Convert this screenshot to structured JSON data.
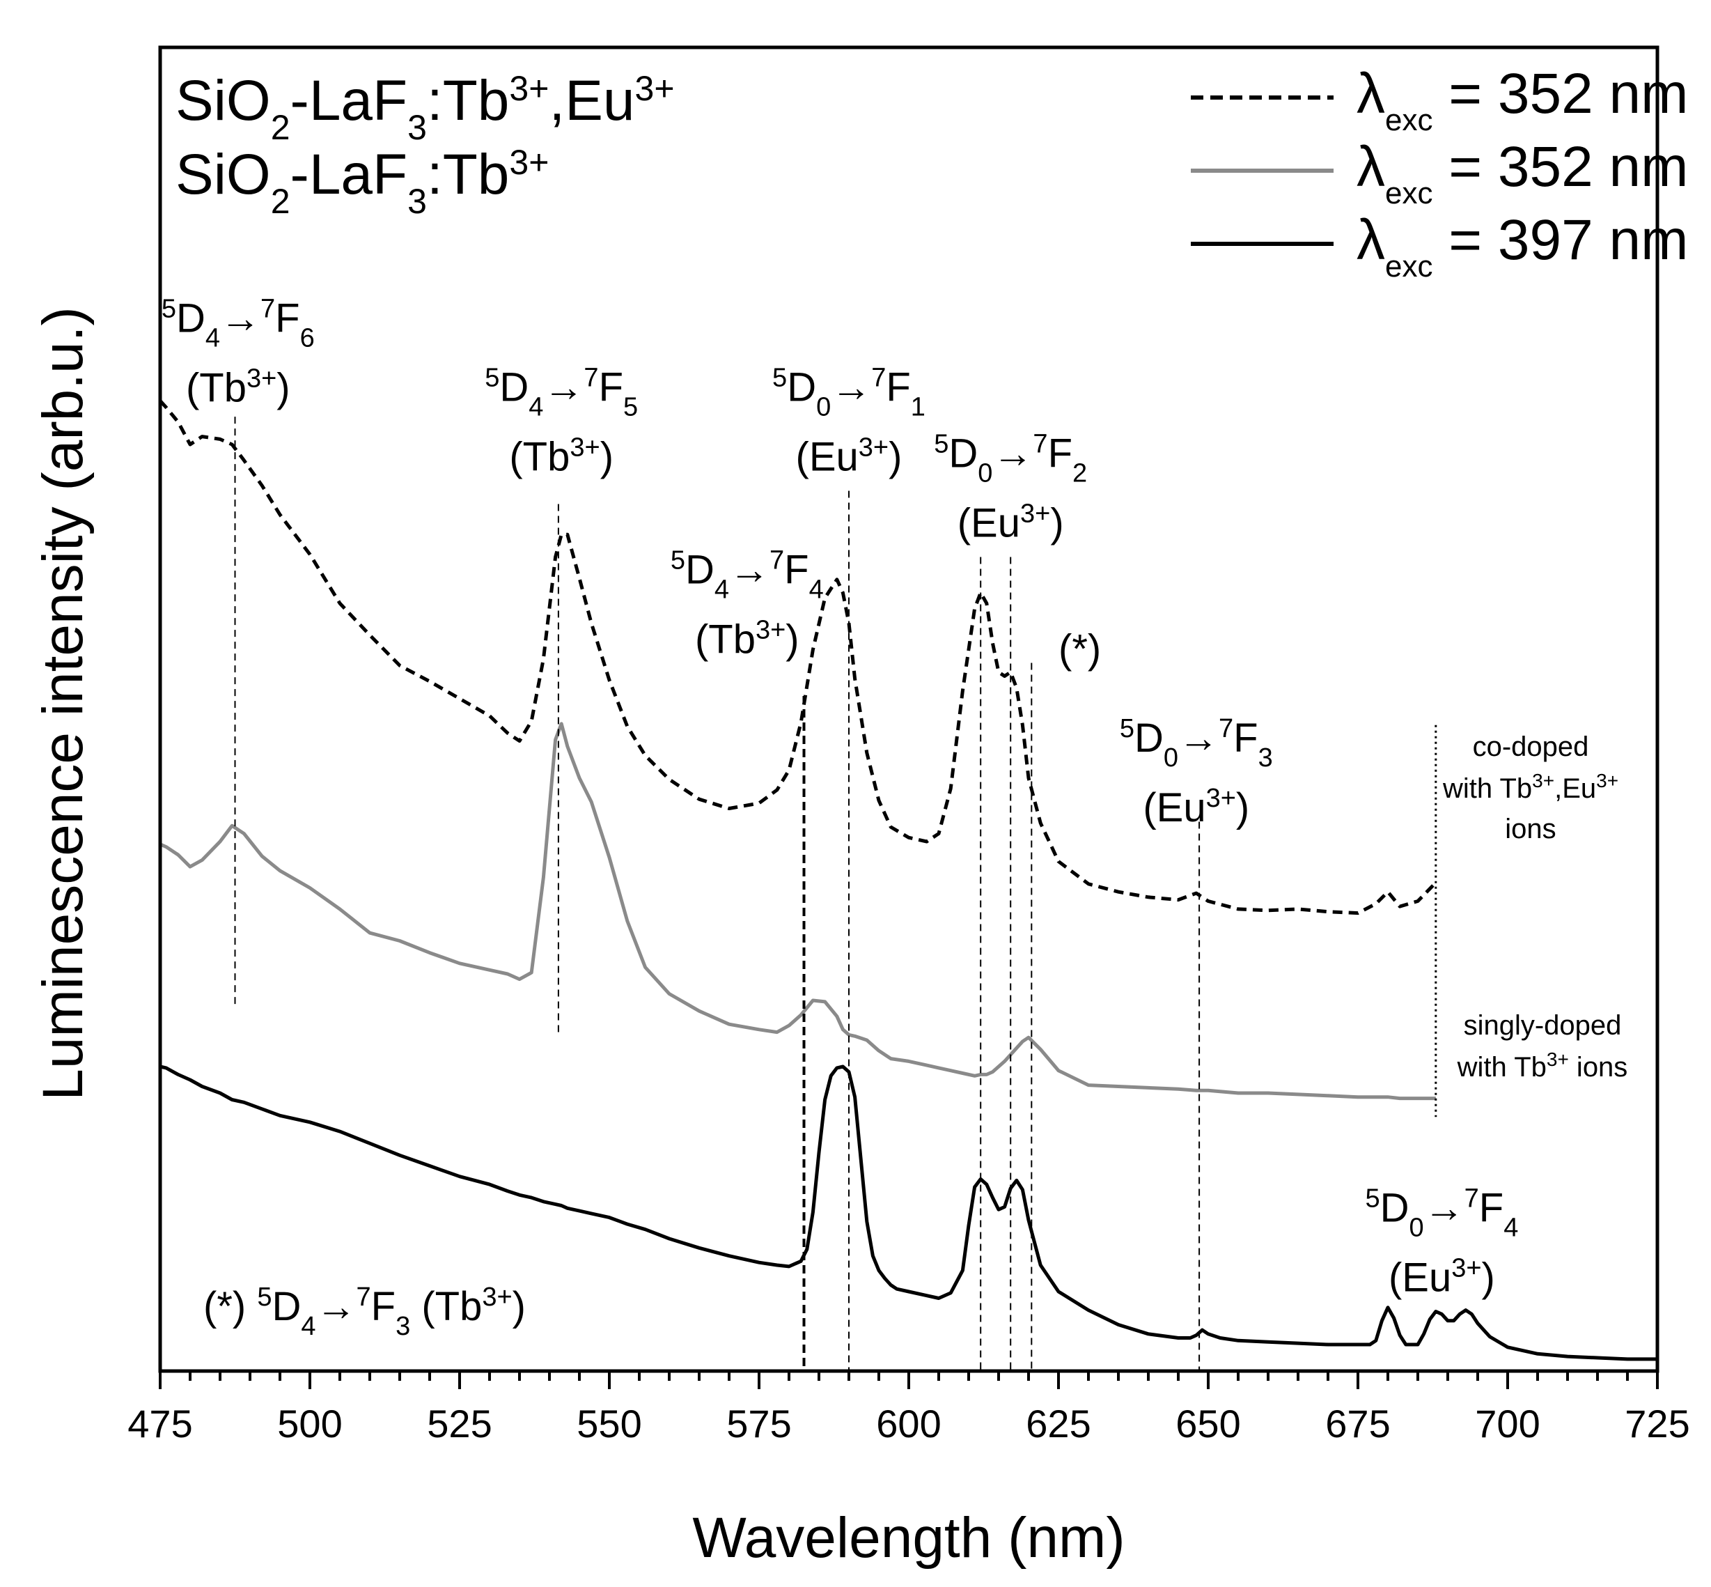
{
  "chart_data": {
    "type": "line",
    "xlabel": "Wavelength (nm)",
    "ylabel": "Luminescence intensity (arb.u.)",
    "xlim": [
      475,
      725
    ],
    "ylim": [
      0,
      1
    ],
    "x_ticks": [
      "475",
      "500",
      "525",
      "550",
      "575",
      "600",
      "625",
      "650",
      "675",
      "700",
      "725"
    ],
    "y_ticks_shown": false,
    "sample_labels": [
      {
        "parts": [
          [
            "SiO",
            "n"
          ],
          [
            "2",
            "sub"
          ],
          [
            "-LaF",
            "n"
          ],
          [
            "3",
            "sub"
          ],
          [
            ":Tb",
            "n"
          ],
          [
            "3+",
            "sup"
          ],
          [
            ",Eu",
            "n"
          ],
          [
            "3+",
            "sup"
          ]
        ]
      },
      {
        "parts": [
          [
            "SiO",
            "n"
          ],
          [
            "2",
            "sub"
          ],
          [
            "-LaF",
            "n"
          ],
          [
            "3",
            "sub"
          ],
          [
            ":Tb",
            "n"
          ],
          [
            "3+",
            "sup"
          ]
        ]
      }
    ],
    "legend": [
      {
        "style": "dashed",
        "color": "#000000",
        "prefix": "λ",
        "sub": "exc",
        "text": " = 352 nm"
      },
      {
        "style": "solid",
        "color": "#8a8a8a",
        "prefix": "λ",
        "sub": "exc",
        "text": " = 352 nm"
      },
      {
        "style": "solid",
        "color": "#000000",
        "prefix": "λ",
        "sub": "exc",
        "text": " = 397 nm"
      }
    ],
    "series": [
      {
        "name": "co-doped with Tb3+,Eu3+ ions, λexc = 352 nm",
        "style": "dashed",
        "color": "#000000",
        "x": [
          475,
          476,
          478,
          480,
          482,
          485,
          487,
          489,
          492,
          495,
          500,
          505,
          510,
          515,
          520,
          525,
          530,
          533,
          535,
          537,
          539,
          541,
          542,
          543,
          545,
          547,
          550,
          553,
          556,
          560,
          565,
          570,
          575,
          578,
          580,
          582,
          584,
          586,
          588,
          589,
          590,
          591,
          593,
          595,
          597,
          600,
          603,
          605,
          607,
          609,
          611,
          612,
          613,
          614,
          615,
          616,
          617,
          618,
          619,
          620,
          622,
          625,
          630,
          635,
          640,
          645,
          648,
          650,
          655,
          660,
          665,
          670,
          675,
          678,
          680,
          682,
          685,
          688
        ],
        "y": [
          0.733,
          0.728,
          0.717,
          0.7,
          0.706,
          0.704,
          0.7,
          0.688,
          0.669,
          0.647,
          0.617,
          0.58,
          0.556,
          0.533,
          0.521,
          0.508,
          0.495,
          0.482,
          0.476,
          0.491,
          0.538,
          0.615,
          0.632,
          0.632,
          0.599,
          0.565,
          0.522,
          0.487,
          0.465,
          0.447,
          0.432,
          0.425,
          0.429,
          0.439,
          0.454,
          0.49,
          0.545,
          0.584,
          0.598,
          0.588,
          0.565,
          0.523,
          0.467,
          0.431,
          0.411,
          0.403,
          0.4,
          0.406,
          0.44,
          0.514,
          0.576,
          0.588,
          0.58,
          0.55,
          0.528,
          0.525,
          0.528,
          0.516,
          0.488,
          0.448,
          0.414,
          0.385,
          0.368,
          0.362,
          0.358,
          0.356,
          0.361,
          0.355,
          0.349,
          0.348,
          0.349,
          0.347,
          0.346,
          0.353,
          0.362,
          0.351,
          0.355,
          0.369
        ]
      },
      {
        "name": "singly-doped with Tb3+ ions, λexc = 352 nm",
        "style": "solid",
        "color": "#8a8a8a",
        "x": [
          475,
          476,
          478,
          480,
          482,
          485,
          487,
          489,
          492,
          495,
          500,
          505,
          510,
          515,
          520,
          525,
          530,
          533,
          535,
          537,
          539,
          541,
          542,
          543,
          545,
          547,
          550,
          553,
          556,
          560,
          565,
          570,
          575,
          578,
          580,
          582,
          584,
          586,
          588,
          589,
          590,
          591,
          593,
          595,
          597,
          600,
          603,
          605,
          607,
          609,
          611,
          612,
          613,
          614,
          615,
          616,
          617,
          618,
          619,
          620,
          622,
          625,
          630,
          635,
          640,
          645,
          648,
          650,
          655,
          660,
          665,
          670,
          675,
          678,
          680,
          682,
          685,
          688
        ],
        "y": [
          0.398,
          0.396,
          0.39,
          0.381,
          0.386,
          0.4,
          0.412,
          0.406,
          0.389,
          0.378,
          0.365,
          0.349,
          0.331,
          0.325,
          0.316,
          0.308,
          0.303,
          0.3,
          0.296,
          0.301,
          0.373,
          0.477,
          0.489,
          0.472,
          0.448,
          0.43,
          0.388,
          0.34,
          0.305,
          0.285,
          0.272,
          0.262,
          0.258,
          0.256,
          0.261,
          0.269,
          0.28,
          0.279,
          0.268,
          0.258,
          0.254,
          0.253,
          0.25,
          0.242,
          0.236,
          0.234,
          0.231,
          0.229,
          0.227,
          0.225,
          0.223,
          0.224,
          0.224,
          0.226,
          0.23,
          0.234,
          0.239,
          0.244,
          0.249,
          0.252,
          0.243,
          0.227,
          0.216,
          0.215,
          0.214,
          0.213,
          0.212,
          0.212,
          0.21,
          0.21,
          0.209,
          0.208,
          0.207,
          0.207,
          0.207,
          0.206,
          0.206,
          0.206
        ]
      },
      {
        "name": "co-doped with Tb3+,Eu3+ ions, λexc = 397 nm",
        "style": "solid",
        "color": "#000000",
        "x": [
          475,
          476,
          478,
          480,
          482,
          485,
          487,
          489,
          492,
          495,
          500,
          505,
          510,
          515,
          520,
          525,
          530,
          533,
          535,
          537,
          539,
          541,
          542,
          543,
          545,
          547,
          550,
          553,
          556,
          560,
          565,
          570,
          575,
          578,
          580,
          582,
          583,
          584,
          585,
          586,
          587,
          588,
          589,
          590,
          591,
          592,
          593,
          594,
          595,
          596,
          597,
          598,
          600,
          603,
          605,
          607,
          609,
          610,
          611,
          612,
          613,
          614,
          615,
          616,
          617,
          618,
          619,
          620,
          622,
          625,
          630,
          635,
          640,
          645,
          647,
          648,
          649,
          650,
          652,
          655,
          660,
          665,
          670,
          675,
          677,
          678,
          679,
          680,
          681,
          682,
          683,
          685,
          686,
          687,
          688,
          689,
          690,
          691,
          692,
          693,
          694,
          695,
          697,
          700,
          705,
          710,
          715,
          720,
          725
        ],
        "y": [
          0.23,
          0.229,
          0.224,
          0.22,
          0.215,
          0.21,
          0.205,
          0.203,
          0.198,
          0.193,
          0.188,
          0.181,
          0.172,
          0.163,
          0.155,
          0.147,
          0.141,
          0.136,
          0.133,
          0.131,
          0.128,
          0.126,
          0.125,
          0.123,
          0.121,
          0.119,
          0.116,
          0.111,
          0.107,
          0.1,
          0.093,
          0.087,
          0.082,
          0.08,
          0.079,
          0.083,
          0.092,
          0.12,
          0.165,
          0.205,
          0.223,
          0.229,
          0.23,
          0.226,
          0.207,
          0.16,
          0.113,
          0.087,
          0.076,
          0.07,
          0.065,
          0.062,
          0.06,
          0.057,
          0.055,
          0.059,
          0.076,
          0.11,
          0.139,
          0.145,
          0.141,
          0.131,
          0.122,
          0.124,
          0.138,
          0.144,
          0.137,
          0.114,
          0.08,
          0.06,
          0.046,
          0.035,
          0.028,
          0.025,
          0.025,
          0.027,
          0.031,
          0.028,
          0.025,
          0.023,
          0.022,
          0.021,
          0.02,
          0.02,
          0.02,
          0.023,
          0.038,
          0.048,
          0.04,
          0.027,
          0.02,
          0.02,
          0.028,
          0.039,
          0.045,
          0.043,
          0.038,
          0.038,
          0.043,
          0.046,
          0.043,
          0.036,
          0.026,
          0.018,
          0.013,
          0.011,
          0.01,
          0.009,
          0.009
        ]
      }
    ],
    "transition_lines": [
      {
        "x": 487.5,
        "y_top": 0.721,
        "y_bottom": 0.275,
        "style": "dashed"
      },
      {
        "x": 541.5,
        "y_top": 0.655,
        "y_bottom": 0.253,
        "style": "dashed"
      },
      {
        "x": 582.5,
        "y_top": 0.51,
        "y_bottom": 0.0,
        "style": "dashed-heavy"
      },
      {
        "x": 590,
        "y_top": 0.665,
        "y_bottom": 0.0,
        "style": "dashed"
      },
      {
        "x": 612,
        "y_top": 0.615,
        "y_bottom": 0.0,
        "style": "dashed"
      },
      {
        "x": 617,
        "y_top": 0.615,
        "y_bottom": 0.0,
        "style": "dashed"
      },
      {
        "x": 620.5,
        "y_top": 0.535,
        "y_bottom": 0.0,
        "style": "dashed"
      },
      {
        "x": 648.5,
        "y_top": 0.415,
        "y_bottom": 0.0,
        "style": "dashed"
      },
      {
        "x": 688,
        "y_top": 0.488,
        "y_bottom": 0.192,
        "style": "dotted"
      }
    ],
    "annotations": [
      {
        "x": 488,
        "y": 0.785,
        "upper": "5",
        "a": "D",
        "a_sub": "4",
        "arrow": "→",
        "b_sup": "7",
        "b": "F",
        "b_sub": "6",
        "ion_open": "(Tb",
        "ion_sup": "3+",
        "ion_close": ")"
      },
      {
        "x": 542,
        "y": 0.733,
        "upper": "5",
        "a": "D",
        "a_sub": "4",
        "arrow": "→",
        "b_sup": "7",
        "b": "F",
        "b_sub": "5",
        "ion_open": "(Tb",
        "ion_sup": "3+",
        "ion_close": ")"
      },
      {
        "x": 590,
        "y": 0.733,
        "upper": "5",
        "a": "D",
        "a_sub": "0",
        "arrow": "→",
        "b_sup": "7",
        "b": "F",
        "b_sub": "1",
        "ion_open": "(Eu",
        "ion_sup": "3+",
        "ion_close": ")"
      },
      {
        "x": 617,
        "y": 0.683,
        "upper": "5",
        "a": "D",
        "a_sub": "0",
        "arrow": "→",
        "b_sup": "7",
        "b": "F",
        "b_sub": "2",
        "ion_open": "(Eu",
        "ion_sup": "3+",
        "ion_close": ")"
      },
      {
        "x": 573,
        "y": 0.595,
        "upper": "5",
        "a": "D",
        "a_sub": "4",
        "arrow": "→",
        "b_sup": "7",
        "b": "F",
        "b_sub": "4",
        "ion_open": "(Tb",
        "ion_sup": "3+",
        "ion_close": ")"
      },
      {
        "x": 648,
        "y": 0.468,
        "upper": "5",
        "a": "D",
        "a_sub": "0",
        "arrow": "→",
        "b_sup": "7",
        "b": "F",
        "b_sub": "3",
        "ion_open": "(Eu",
        "ion_sup": "3+",
        "ion_close": ")"
      },
      {
        "x": 689,
        "y": 0.113,
        "upper": "5",
        "a": "D",
        "a_sub": "0",
        "arrow": "→",
        "b_sup": "7",
        "b": "F",
        "b_sub": "4",
        "ion_open": "(Eu",
        "ion_sup": "3+",
        "ion_close": ")"
      }
    ],
    "star_marker": {
      "x": 625,
      "y": 0.535,
      "text": "(*)"
    },
    "footnote": {
      "prefix": "(*) ",
      "upper": "5",
      "a": "D",
      "a_sub": "4",
      "arrow": "→",
      "b_sup": "7",
      "b": "F",
      "b_sub": "3",
      "ion_open": " (Tb",
      "ion_sup": "3+",
      "ion_close": ")"
    },
    "side_labels": [
      {
        "line1": "co-doped",
        "line2_text": "with Tb",
        "line2_sup1": "3+",
        "line2_mid": ",Eu",
        "line2_sup2": "3+",
        "line3": "ions"
      },
      {
        "line1": "singly-doped",
        "line2_text": "with Tb",
        "line2_sup1": "3+",
        "line2_mid": " ions",
        "line2_sup2": "",
        "line3": ""
      }
    ]
  }
}
